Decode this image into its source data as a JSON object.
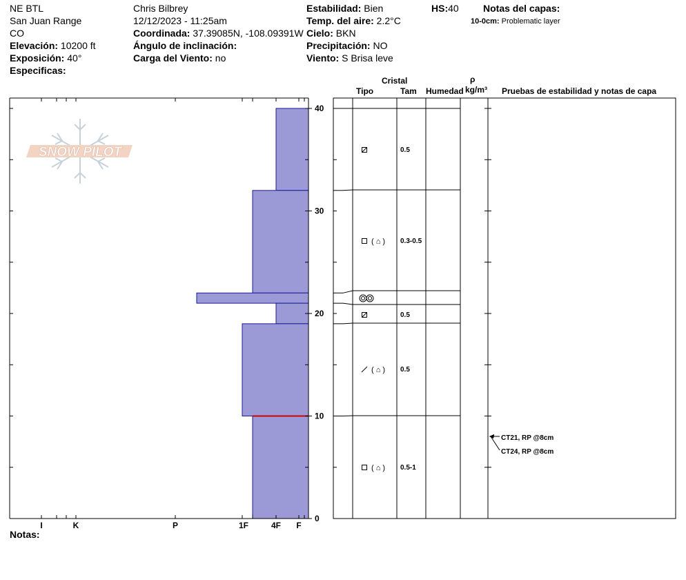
{
  "header": {
    "location": "NE BTL",
    "range": "San Juan Range",
    "state": "CO",
    "elevation_label": "Elevación:",
    "elevation_value": "10200 ft",
    "aspect_label": "Exposición:",
    "aspect_value": "40°",
    "specifics_label": "Especificas:",
    "observer": "Chris Bilbrey",
    "datetime": "12/12/2023 - 11:25am",
    "coord_label": "Coordinada:",
    "coord_value": "37.39085N, -108.09391W",
    "slope_label": "Ángulo de inclinación:",
    "wind_load_label": "Carga del Viento:",
    "wind_load_value": "no",
    "stability_label": "Estabilidad:",
    "stability_value": "Bien",
    "air_temp_label": "Temp. del aire:",
    "air_temp_value": "2.2°C",
    "sky_label": "Cielo:",
    "sky_value": "BKN",
    "precip_label": "Precipitación:",
    "precip_value": "NO",
    "wind_label": "Viento:",
    "wind_value": "S Brisa leve",
    "hs_label": "HS:",
    "hs_value": "40",
    "layer_notes_label": "Notas del capas:",
    "layer_note_range": "10-0cm:",
    "layer_note_text": "Problematic layer",
    "notes_label": "Notas:"
  },
  "watermark": "SNOW PILOT",
  "table_headers": {
    "crystal": "Cristal",
    "type": "Tipo",
    "size": "Tam",
    "moisture": "Humedad",
    "rho": "ρ",
    "density_unit": "kg/m³",
    "tests": "Pruebas de estabilidad y notas de capa"
  },
  "colors": {
    "hardness_fill": "#9b99d6",
    "hardness_stroke": "#1a1a9a",
    "critical_line": "#cc0000"
  },
  "chart_data": {
    "type": "bar",
    "title": "",
    "y_axis": {
      "label": "",
      "range": [
        0,
        40
      ],
      "ticks": [
        0,
        10,
        20,
        30,
        40
      ]
    },
    "x_axis": {
      "categories": [
        "I",
        "K",
        "P",
        "1F",
        "4F",
        "F"
      ]
    },
    "layers": [
      {
        "top": 40,
        "bottom": 32,
        "hardness": "4F"
      },
      {
        "top": 32,
        "bottom": 22,
        "hardness": "1F+"
      },
      {
        "top": 22,
        "bottom": 21,
        "hardness": "P+"
      },
      {
        "top": 21,
        "bottom": 19,
        "hardness": "4F"
      },
      {
        "top": 19,
        "bottom": 10,
        "hardness": "1F"
      },
      {
        "top": 10,
        "bottom": 0,
        "hardness": "1F+"
      }
    ],
    "critical_layer_depth": 10
  },
  "crystal_layers": [
    {
      "top": 40,
      "bottom": 32,
      "type_icon": "square-slash",
      "size": "0.5"
    },
    {
      "top": 32,
      "bottom": 22.2,
      "type_icon": "square-paren-cup",
      "size": "0.3-0.5"
    },
    {
      "top": 22.2,
      "bottom": 20.8,
      "type_icon": "double-circle",
      "size": ""
    },
    {
      "top": 20.8,
      "bottom": 19,
      "type_icon": "square-slash",
      "size": "0.5"
    },
    {
      "top": 19,
      "bottom": 10,
      "type_icon": "slash-paren-cup",
      "size": "0.5"
    },
    {
      "top": 10,
      "bottom": 0,
      "type_icon": "square-paren-cup",
      "size": "0.5-1"
    }
  ],
  "stability_tests": [
    {
      "text": "CT21, RP @8cm",
      "depth": 8
    },
    {
      "text": "CT24, RP @8cm",
      "depth": 8
    }
  ]
}
